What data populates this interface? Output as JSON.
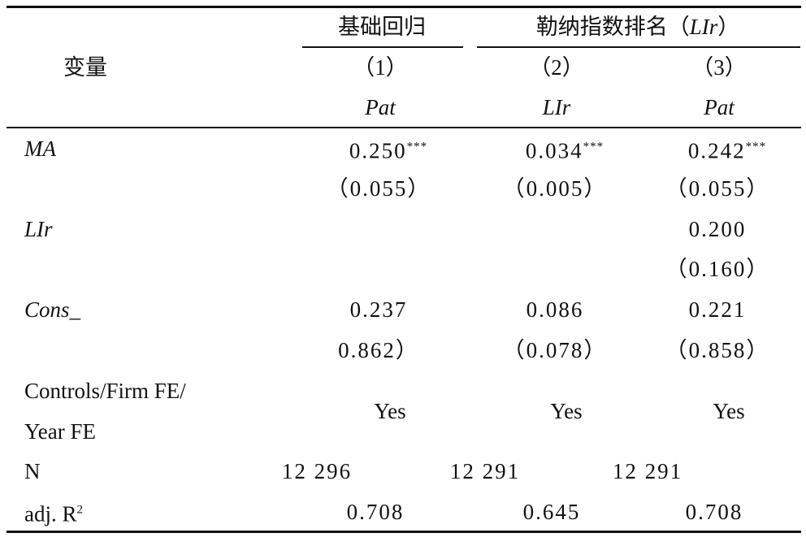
{
  "header": {
    "var_label": "变量",
    "group1": "基础回归",
    "group2": {
      "prefix": "勒纳指数排名（",
      "italic": "LIr",
      "suffix": "）"
    },
    "columns": [
      "（1）",
      "（2）",
      "（3）"
    ],
    "dep_vars": [
      "Pat",
      "LIr",
      "Pat"
    ]
  },
  "rows": [
    {
      "label": "MA",
      "cells": [
        {
          "value": "0.250",
          "stars": "***"
        },
        {
          "value": "0.034",
          "stars": "***"
        },
        {
          "value": "0.242",
          "stars": "***"
        }
      ]
    },
    {
      "cells": [
        "（0.055）",
        "（0.005）",
        "（0.055）"
      ]
    },
    {
      "label": "LIr",
      "cells": [
        "",
        "",
        "0.200"
      ]
    },
    {
      "cells": [
        "",
        "",
        "（0.160）"
      ]
    },
    {
      "label": "Cons_",
      "cells": [
        "0.237",
        "0.086",
        "0.221"
      ]
    },
    {
      "cells": [
        "0.862）",
        "（0.078）",
        "（0.858）"
      ]
    }
  ],
  "controls": {
    "label": [
      "Controls/Firm FE/",
      "Year FE"
    ],
    "cells": [
      "Yes",
      "Yes",
      "Yes"
    ]
  },
  "n_row": {
    "label": "N",
    "cells": [
      "12 296",
      "12 291",
      "12 291"
    ]
  },
  "adj_r2": {
    "label": "adj. R",
    "sup": "2",
    "cells": [
      "0.708",
      "0.645",
      "0.708"
    ]
  }
}
